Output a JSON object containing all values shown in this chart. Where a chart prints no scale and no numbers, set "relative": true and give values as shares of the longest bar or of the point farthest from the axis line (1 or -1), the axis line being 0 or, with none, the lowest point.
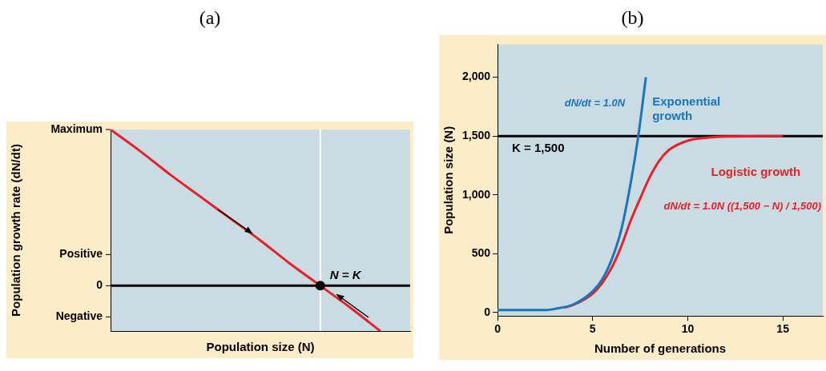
{
  "chart_data": [
    {
      "type": "line",
      "title": "(a)",
      "xlabel": "Population size (N)",
      "ylabel": "Population growth rate (dN/dt)",
      "relative": true,
      "categories": [
        null,
        null,
        null,
        null,
        null,
        null,
        null,
        null,
        null,
        null,
        null
      ],
      "series": [
        {
          "color": "#e8202a",
          "values": [
            1,
            0.86,
            0.71,
            0.57,
            0.43,
            0.29,
            0.14,
            0,
            -0.14,
            -0.29,
            null
          ]
        }
      ],
      "annotations": [
        "Maximum",
        "Positive",
        "0",
        "Negative",
        "N = K"
      ]
    },
    {
      "type": "line",
      "title": "(b)",
      "xlabel": "Number of generations",
      "ylabel": "Population size (N)",
      "xlim": [
        0,
        17.1
      ],
      "ylim": [
        -30,
        2280
      ],
      "xticks": [
        0,
        5,
        10,
        15
      ],
      "yticks": [
        0,
        500,
        {
          "value": 1000,
          "label": "1,000"
        },
        {
          "value": 1500,
          "label": "1,500"
        },
        {
          "value": 2000,
          "label": "2,000"
        }
      ],
      "series": [
        {
          "name": "Exponential growth",
          "color": "#1a75bc",
          "x": [
            0,
            1,
            2,
            2.5,
            3,
            4,
            5,
            5.5,
            6,
            6.5,
            7,
            7.4,
            7.8
          ],
          "values": [
            20,
            20,
            20,
            20,
            30,
            70,
            180,
            280,
            450,
            700,
            1100,
            1500,
            2000
          ]
        },
        {
          "name": "Logistic growth",
          "color": "#e8202a",
          "x": [
            3.5,
            4,
            5,
            5.5,
            6,
            6.5,
            7,
            7.5,
            8,
            8.5,
            9,
            10,
            11,
            12,
            15
          ],
          "values": [
            40,
            65,
            160,
            250,
            380,
            560,
            780,
            970,
            1150,
            1290,
            1380,
            1460,
            1485,
            1495,
            1500
          ]
        }
      ],
      "ref_lines": [
        {
          "axis": "y",
          "value": 1500,
          "label": "K = 1,500",
          "color": "#000000"
        }
      ],
      "annotations": [
        "dN/dt = 1.0N",
        "dN/dt = 1.0N ((1,500 − N) / 1,500)"
      ]
    }
  ]
}
